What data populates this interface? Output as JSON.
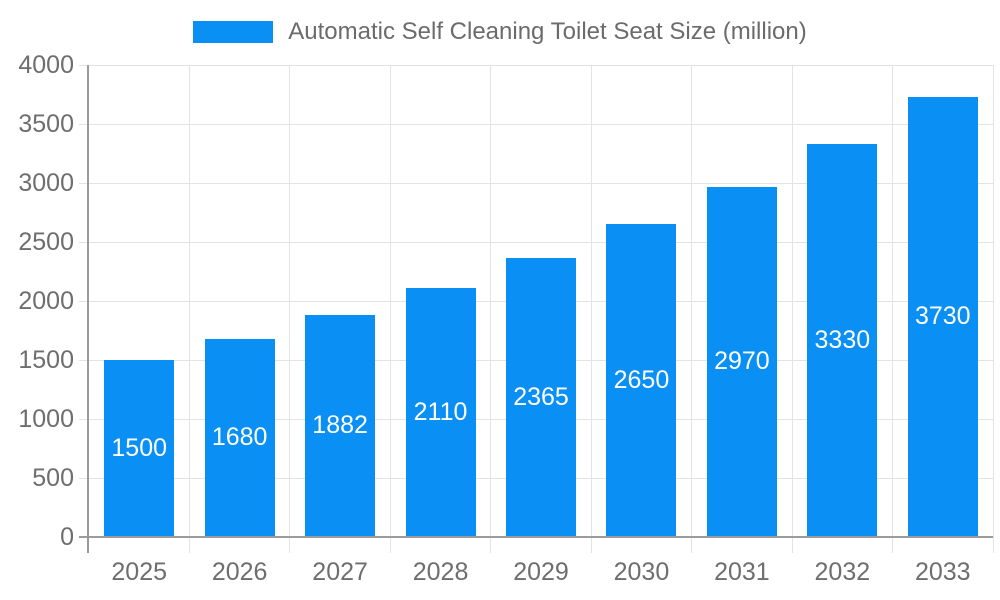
{
  "colors": {
    "background": "#ffffff",
    "bar": "#0A8FF5",
    "axis_line": "#9b9b9b",
    "grid_line": "#e3e3e3",
    "tick_text": "#6e6e6e",
    "legend_text": "#6b6b6b",
    "value_label_text": "#ffffff"
  },
  "legend": {
    "label": "Automatic Self Cleaning Toilet Seat Size (million)"
  },
  "chart_data": {
    "type": "bar",
    "title": "Automatic Self Cleaning Toilet Seat Size (million)",
    "legend_entries": [
      "Automatic Self Cleaning Toilet Seat Size (million)"
    ],
    "legend_position": "top-center",
    "categories": [
      "2025",
      "2026",
      "2027",
      "2028",
      "2029",
      "2030",
      "2031",
      "2032",
      "2033"
    ],
    "values": [
      1500,
      1680,
      1882,
      2110,
      2365,
      2650,
      2970,
      3330,
      3730
    ],
    "value_labels_shown": true,
    "xlabel": "",
    "ylabel": "",
    "ylim": [
      0,
      4000
    ],
    "yticks": [
      0,
      500,
      1000,
      1500,
      2000,
      2500,
      3000,
      3500,
      4000
    ],
    "grid": true
  }
}
